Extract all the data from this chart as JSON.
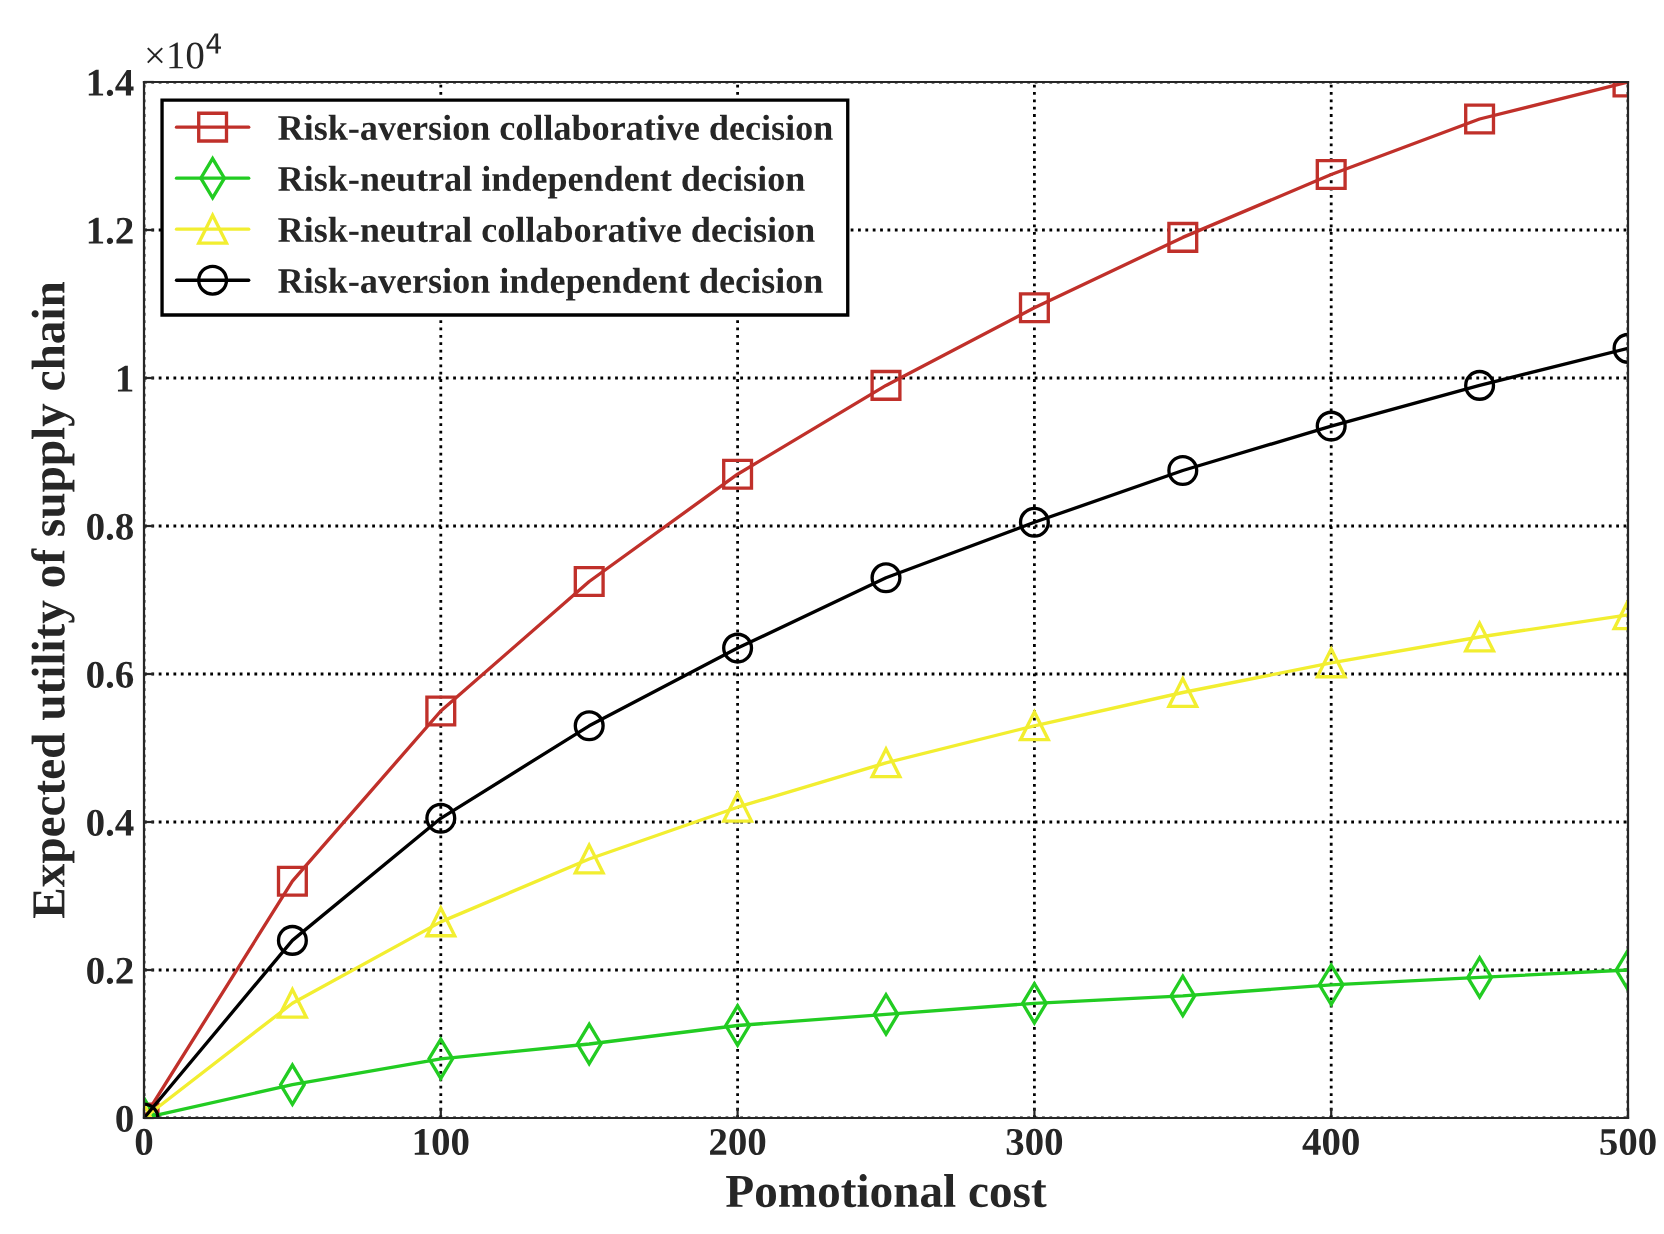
{
  "chart_data": {
    "type": "line",
    "xlabel": "Pomotional cost",
    "ylabel": "Expected utility of supply chain",
    "annotations": [
      "×10$^{4}$"
    ],
    "x": [
      0,
      50,
      100,
      150,
      200,
      250,
      300,
      350,
      400,
      450,
      500
    ],
    "series": [
      {
        "name": "Risk-aversion collaborative decision",
        "color": "#c0302a",
        "marker": "square",
        "values": [
          0,
          0.32,
          0.55,
          0.725,
          0.87,
          0.99,
          1.095,
          1.19,
          1.275,
          1.35,
          1.4
        ]
      },
      {
        "name": "Risk-neutral independent decision",
        "color": "#22cc22",
        "marker": "diamond",
        "values": [
          0,
          0.045,
          0.08,
          0.1,
          0.125,
          0.14,
          0.155,
          0.165,
          0.18,
          0.19,
          0.2
        ]
      },
      {
        "name": "Risk-neutral collaborative decision",
        "color": "#f2ee30",
        "marker": "triangle",
        "values": [
          0,
          0.155,
          0.265,
          0.35,
          0.42,
          0.48,
          0.53,
          0.575,
          0.615,
          0.65,
          0.68
        ]
      },
      {
        "name": "Risk-aversion independent decision",
        "color": "#000000",
        "marker": "circle",
        "values": [
          0,
          0.24,
          0.405,
          0.53,
          0.635,
          0.73,
          0.805,
          0.875,
          0.935,
          0.99,
          1.04
        ]
      }
    ],
    "xlim": [
      0,
      500
    ],
    "xticks": [
      0,
      100,
      200,
      300,
      400,
      500
    ],
    "ylim": [
      0,
      1.4
    ],
    "yticks": [
      0,
      0.2,
      0.4,
      0.6,
      0.8,
      1,
      1.2,
      1.4
    ],
    "grid": true,
    "legend": "top left",
    "line_style": "solid"
  }
}
